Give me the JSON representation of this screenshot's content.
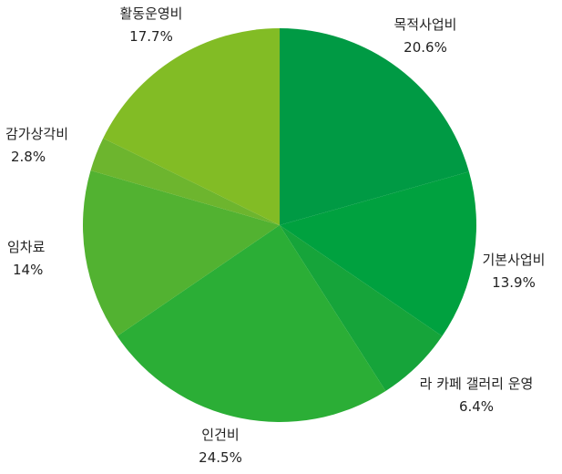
{
  "chart_data": {
    "type": "pie",
    "title": "",
    "slices": [
      {
        "name": "목적사업비",
        "value": 20.6,
        "label": "20.6%",
        "color": "#009a44"
      },
      {
        "name": "기본사업비",
        "value": 13.9,
        "label": "13.9%",
        "color": "#00a13f"
      },
      {
        "name": "라 카페 갤러리 운영",
        "value": 6.4,
        "label": "6.4%",
        "color": "#16a43a"
      },
      {
        "name": "인건비",
        "value": 24.5,
        "label": "24.5%",
        "color": "#2bae36"
      },
      {
        "name": "임차료",
        "value": 14,
        "label": "14%",
        "color": "#52b231"
      },
      {
        "name": "감가상각비",
        "value": 2.8,
        "label": "2.8%",
        "color": "#6db52e"
      },
      {
        "name": "활동운영비",
        "value": 17.7,
        "label": "17.7%",
        "color": "#82bc25"
      }
    ]
  }
}
